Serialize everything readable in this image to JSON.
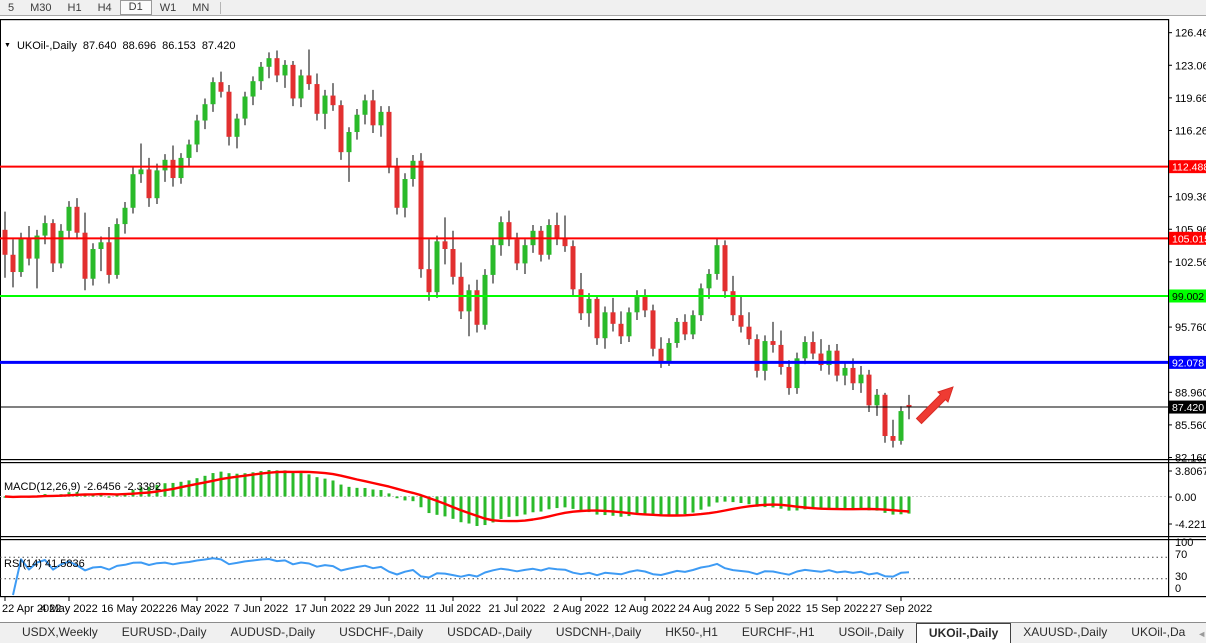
{
  "toolbar": {
    "timeframes": [
      {
        "label": "5",
        "active": false
      },
      {
        "label": "M30",
        "active": false
      },
      {
        "label": "H1",
        "active": false
      },
      {
        "label": "H4",
        "active": false
      },
      {
        "label": "D1",
        "active": true
      },
      {
        "label": "W1",
        "active": false
      },
      {
        "label": "MN",
        "active": false
      }
    ]
  },
  "chart": {
    "title": {
      "symbol": "UKOil-,Daily",
      "open": "87.640",
      "high": "88.696",
      "low": "86.153",
      "close": "87.420"
    },
    "menu_icon": "▼",
    "price_axis_ticks": [
      "126.460",
      "123.060",
      "119.660",
      "116.260",
      "109.360",
      "105.960",
      "102.560",
      "95.760",
      "88.960",
      "85.560",
      "82.160"
    ],
    "levels": [
      {
        "price": 112.488,
        "label": "112.488",
        "color": "#ff0000",
        "text_color": "#ffffff",
        "thickness": 2
      },
      {
        "price": 105.015,
        "label": "105.015",
        "color": "#ff0000",
        "text_color": "#ffffff",
        "thickness": 2
      },
      {
        "price": 99.002,
        "label": "99.002",
        "color": "#00ff00",
        "text_color": "#000000",
        "thickness": 2
      },
      {
        "price": 92.078,
        "label": "92.078",
        "color": "#0000ff",
        "text_color": "#ffffff",
        "thickness": 3
      },
      {
        "price": 87.42,
        "label": "87.420",
        "color": "#000000",
        "text_color": "#ffffff",
        "thickness": 1
      }
    ],
    "colors": {
      "bull": "#2aba2a",
      "bear": "#e23030",
      "wick": "#000000",
      "macd_hist": "#2aba2a",
      "macd_signal": "#ff0000",
      "rsi_line": "#3e9bf4"
    }
  },
  "macd": {
    "display": "MACD(12,26,9) -2.6456 -2.3392",
    "name": "MACD",
    "params": [
      12,
      26,
      9
    ],
    "values": [
      -2.6456,
      -2.3392
    ],
    "axis_labels": [
      "3.8067",
      "0.00",
      "-4.221"
    ]
  },
  "rsi": {
    "display": "RSI(14) 41.5836",
    "name": "RSI",
    "params": [
      14
    ],
    "value": 41.5836,
    "axis_labels": [
      "100",
      "70",
      "30",
      "0"
    ],
    "level_lines": [
      70,
      30
    ]
  },
  "chart_data": {
    "type": "candlestick",
    "title": "UKOil-,Daily",
    "timeframe": "Daily",
    "ylabel": "Price",
    "ylim": [
      82.16,
      127.9
    ],
    "x_labels": [
      "22 Apr 2022",
      "4 May 2022",
      "16 May 2022",
      "26 May 2022",
      "7 Jun 2022",
      "17 Jun 2022",
      "29 Jun 2022",
      "11 Jul 2022",
      "21 Jul 2022",
      "2 Aug 2022",
      "12 Aug 2022",
      "24 Aug 2022",
      "5 Sep 2022",
      "15 Sep 2022",
      "27 Sep 2022"
    ],
    "x_label_bar_indices": [
      0,
      8,
      16,
      24,
      32,
      40,
      48,
      56,
      64,
      72,
      80,
      88,
      96,
      104,
      112
    ],
    "last_bar_ohlc": [
      87.64,
      88.696,
      86.153,
      87.42
    ],
    "candles": [
      [
        105.9,
        107.8,
        100.9,
        103.3
      ],
      [
        103.3,
        104.9,
        99.9,
        101.5
      ],
      [
        101.5,
        105.6,
        101.0,
        105.0
      ],
      [
        105.0,
        106.3,
        102.2,
        102.9
      ],
      [
        102.9,
        105.9,
        99.8,
        105.3
      ],
      [
        105.3,
        107.4,
        104.4,
        106.6
      ],
      [
        106.6,
        107.0,
        101.5,
        102.4
      ],
      [
        102.4,
        106.5,
        101.9,
        105.8
      ],
      [
        105.8,
        108.9,
        105.0,
        108.3
      ],
      [
        108.3,
        109.2,
        104.9,
        105.6
      ],
      [
        105.6,
        107.7,
        99.6,
        100.8
      ],
      [
        100.8,
        104.5,
        100.1,
        103.9
      ],
      [
        103.9,
        105.2,
        101.6,
        104.6
      ],
      [
        104.6,
        106.2,
        100.3,
        101.2
      ],
      [
        101.2,
        107.1,
        100.8,
        106.5
      ],
      [
        106.5,
        108.8,
        105.5,
        108.2
      ],
      [
        108.2,
        112.4,
        107.6,
        111.7
      ],
      [
        111.7,
        114.9,
        110.8,
        112.2
      ],
      [
        112.2,
        113.4,
        108.3,
        109.2
      ],
      [
        109.2,
        112.8,
        108.6,
        112.1
      ],
      [
        112.1,
        113.8,
        110.9,
        113.2
      ],
      [
        113.2,
        114.7,
        110.4,
        111.3
      ],
      [
        111.3,
        113.9,
        110.7,
        113.4
      ],
      [
        113.4,
        115.3,
        112.5,
        114.8
      ],
      [
        114.8,
        117.9,
        114.0,
        117.3
      ],
      [
        117.3,
        119.6,
        116.4,
        119.0
      ],
      [
        119.0,
        121.8,
        118.2,
        121.3
      ],
      [
        121.3,
        122.4,
        119.7,
        120.3
      ],
      [
        120.3,
        121.0,
        114.7,
        115.6
      ],
      [
        115.6,
        118.0,
        114.4,
        117.5
      ],
      [
        117.5,
        120.3,
        116.8,
        119.8
      ],
      [
        119.8,
        121.9,
        118.9,
        121.4
      ],
      [
        121.4,
        123.4,
        120.5,
        122.9
      ],
      [
        122.9,
        124.4,
        121.7,
        123.8
      ],
      [
        123.8,
        124.6,
        121.3,
        122.0
      ],
      [
        122.0,
        123.6,
        120.7,
        123.1
      ],
      [
        123.1,
        123.5,
        118.8,
        119.6
      ],
      [
        119.6,
        122.6,
        118.7,
        122.0
      ],
      [
        122.0,
        124.7,
        120.5,
        121.1
      ],
      [
        121.1,
        122.2,
        117.3,
        118.0
      ],
      [
        118.0,
        120.5,
        116.4,
        119.9
      ],
      [
        119.9,
        121.2,
        118.3,
        118.9
      ],
      [
        118.9,
        119.4,
        113.2,
        114.0
      ],
      [
        114.0,
        116.6,
        110.9,
        116.1
      ],
      [
        116.1,
        118.5,
        115.3,
        117.9
      ],
      [
        117.9,
        120.0,
        116.9,
        119.4
      ],
      [
        119.4,
        120.5,
        116.0,
        116.8
      ],
      [
        116.8,
        118.8,
        115.6,
        118.2
      ],
      [
        118.2,
        118.8,
        111.8,
        112.5
      ],
      [
        112.5,
        113.4,
        107.5,
        108.2
      ],
      [
        108.2,
        111.8,
        107.2,
        111.2
      ],
      [
        111.2,
        113.7,
        110.4,
        113.1
      ],
      [
        113.1,
        113.9,
        100.9,
        101.8
      ],
      [
        101.8,
        104.9,
        98.5,
        99.4
      ],
      [
        99.4,
        105.3,
        98.8,
        104.7
      ],
      [
        104.7,
        107.2,
        102.3,
        103.9
      ],
      [
        103.9,
        105.8,
        100.2,
        101.0
      ],
      [
        101.0,
        102.5,
        96.6,
        97.4
      ],
      [
        97.4,
        100.2,
        94.8,
        99.6
      ],
      [
        99.6,
        100.7,
        95.2,
        96.0
      ],
      [
        96.0,
        101.8,
        95.5,
        101.2
      ],
      [
        101.2,
        104.9,
        100.3,
        104.3
      ],
      [
        104.3,
        107.3,
        103.2,
        106.7
      ],
      [
        106.7,
        107.9,
        104.2,
        104.9
      ],
      [
        104.9,
        105.6,
        101.7,
        102.4
      ],
      [
        102.4,
        104.9,
        101.3,
        104.3
      ],
      [
        104.3,
        106.4,
        103.5,
        105.8
      ],
      [
        105.8,
        106.3,
        102.6,
        103.3
      ],
      [
        103.3,
        107.0,
        102.8,
        106.4
      ],
      [
        106.4,
        107.7,
        104.3,
        105.0
      ],
      [
        105.0,
        107.4,
        103.6,
        104.2
      ],
      [
        104.2,
        104.8,
        99.0,
        99.7
      ],
      [
        99.7,
        101.4,
        96.5,
        97.2
      ],
      [
        97.2,
        99.3,
        95.8,
        98.7
      ],
      [
        98.7,
        99.0,
        93.9,
        94.6
      ],
      [
        94.6,
        97.9,
        93.5,
        97.3
      ],
      [
        97.3,
        98.8,
        95.3,
        96.1
      ],
      [
        96.1,
        97.4,
        94.0,
        94.8
      ],
      [
        94.8,
        97.8,
        94.2,
        97.3
      ],
      [
        97.3,
        99.6,
        96.5,
        99.1
      ],
      [
        99.1,
        99.7,
        96.8,
        97.5
      ],
      [
        97.5,
        98.1,
        92.7,
        93.5
      ],
      [
        93.5,
        94.7,
        91.5,
        92.2
      ],
      [
        92.2,
        94.6,
        91.7,
        94.1
      ],
      [
        94.1,
        96.7,
        93.6,
        96.3
      ],
      [
        96.3,
        97.1,
        94.4,
        95.0
      ],
      [
        95.0,
        97.5,
        94.5,
        97.0
      ],
      [
        97.0,
        100.3,
        96.4,
        99.8
      ],
      [
        99.8,
        101.8,
        98.7,
        101.3
      ],
      [
        101.3,
        105.0,
        100.7,
        104.3
      ],
      [
        104.3,
        104.8,
        98.8,
        99.5
      ],
      [
        99.5,
        101.1,
        96.4,
        97.0
      ],
      [
        97.0,
        99.0,
        95.2,
        95.8
      ],
      [
        95.8,
        97.3,
        93.9,
        94.5
      ],
      [
        94.5,
        95.0,
        90.5,
        91.2
      ],
      [
        91.2,
        94.9,
        90.2,
        94.3
      ],
      [
        94.3,
        96.3,
        93.1,
        93.9
      ],
      [
        93.9,
        95.4,
        90.8,
        91.6
      ],
      [
        91.6,
        92.3,
        88.7,
        89.4
      ],
      [
        89.4,
        93.1,
        88.8,
        92.5
      ],
      [
        92.5,
        94.8,
        91.9,
        94.2
      ],
      [
        94.2,
        95.3,
        92.4,
        93.0
      ],
      [
        93.0,
        94.5,
        91.2,
        91.8
      ],
      [
        91.8,
        93.9,
        90.8,
        93.3
      ],
      [
        93.3,
        94.0,
        90.1,
        90.7
      ],
      [
        90.7,
        92.2,
        89.7,
        91.5
      ],
      [
        91.5,
        92.5,
        89.2,
        89.9
      ],
      [
        89.9,
        91.7,
        88.9,
        90.8
      ],
      [
        90.8,
        91.3,
        86.9,
        87.6
      ],
      [
        87.6,
        89.3,
        86.5,
        88.7
      ],
      [
        88.7,
        88.9,
        83.7,
        84.4
      ],
      [
        84.4,
        86.1,
        83.2,
        83.9
      ],
      [
        83.9,
        87.5,
        83.5,
        87.0
      ],
      [
        87.64,
        88.696,
        86.153,
        87.42
      ]
    ],
    "indicators": [
      {
        "type": "MACD",
        "params": [
          12,
          26,
          9
        ],
        "last_values": [
          -2.6456,
          -2.3392
        ],
        "axis": [
          3.8067,
          0.0,
          -4.221
        ]
      },
      {
        "type": "RSI",
        "params": [
          14
        ],
        "last_value": 41.5836,
        "levels": [
          70,
          30
        ],
        "axis": [
          100,
          70,
          30,
          0
        ]
      }
    ]
  },
  "annotation": {
    "shape": "arrow-up-right",
    "fill": "#ef3b33",
    "stroke": "#d92b25"
  },
  "tabs": {
    "items": [
      {
        "label": "USDX,Weekly",
        "active": false
      },
      {
        "label": "EURUSD-,Daily",
        "active": false
      },
      {
        "label": "AUDUSD-,Daily",
        "active": false
      },
      {
        "label": "USDCHF-,Daily",
        "active": false
      },
      {
        "label": "USDCAD-,Daily",
        "active": false
      },
      {
        "label": "USDCNH-,Daily",
        "active": false
      },
      {
        "label": "HK50-,H1",
        "active": false
      },
      {
        "label": "EURCHF-,H1",
        "active": false
      },
      {
        "label": "USOil-,Daily",
        "active": false
      },
      {
        "label": "UKOil-,Daily",
        "active": true
      },
      {
        "label": "XAUUSD-,Daily",
        "active": false
      },
      {
        "label": "UKOil-,Da",
        "active": false
      }
    ],
    "scroll_left": "◄",
    "scroll_right": "►"
  }
}
